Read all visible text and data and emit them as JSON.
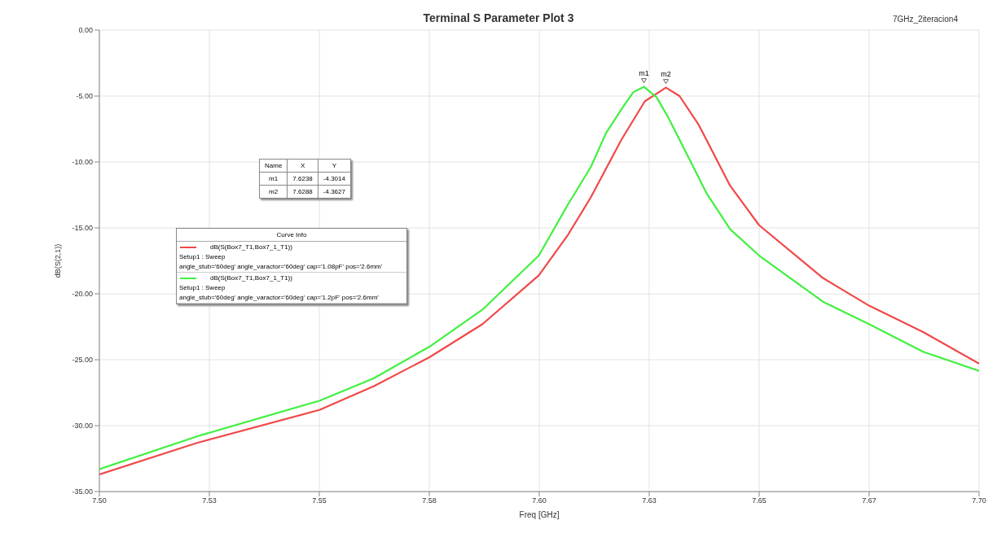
{
  "chart_data": {
    "type": "line",
    "title": "Terminal S Parameter Plot 3",
    "xlabel": "Freq [GHz]",
    "ylabel": "dB(S(2,1))",
    "legend_title": "Curve Info",
    "xlim": [
      7.5,
      7.7
    ],
    "xticks": [
      {
        "value": 7.5,
        "label": "7.50"
      },
      {
        "value": 7.525,
        "label": "7.53"
      },
      {
        "value": 7.55,
        "label": "7.55"
      },
      {
        "value": 7.575,
        "label": "7.58"
      },
      {
        "value": 7.6,
        "label": "7.60"
      },
      {
        "value": 7.625,
        "label": "7.63"
      },
      {
        "value": 7.65,
        "label": "7.65"
      },
      {
        "value": 7.675,
        "label": "7.67"
      },
      {
        "value": 7.7,
        "label": "7.70"
      }
    ],
    "ylim": [
      -35,
      0
    ],
    "yticks": [
      {
        "value": -35,
        "label": "-35.00"
      },
      {
        "value": -30,
        "label": "-30.00"
      },
      {
        "value": -25,
        "label": "-25.00"
      },
      {
        "value": -20,
        "label": "-20.00"
      },
      {
        "value": -15,
        "label": "-15.00"
      },
      {
        "value": -10,
        "label": "-10.00"
      },
      {
        "value": -5,
        "label": "-5.00"
      },
      {
        "value": 0,
        "label": "0.00"
      }
    ],
    "grid": true,
    "legend": "left",
    "marker": "none",
    "line_style": "solid",
    "series": [
      {
        "name": "dB(S(Box7_T1,Box7_1_T1))\nSetup1 : Sweep\nangle_stub='60deg' angle_varactor='60deg' cap='1.08pF' pos='2.6mm'",
        "color": "#f04848",
        "x": [
          7.5,
          7.5223,
          7.5501,
          7.5624,
          7.5751,
          7.5871,
          7.5999,
          7.6064,
          7.6117,
          7.6187,
          7.624,
          7.6288,
          7.6319,
          7.6363,
          7.6434,
          7.65,
          7.6645,
          7.675,
          7.6873,
          7.7
        ],
        "values": [
          -33.7,
          -31.3,
          -28.8,
          -27.0,
          -24.8,
          -22.3,
          -18.6,
          -15.6,
          -12.7,
          -8.3,
          -5.4,
          -4.36,
          -5.0,
          -7.2,
          -11.8,
          -14.8,
          -18.8,
          -20.9,
          -22.9,
          -25.3
        ]
      },
      {
        "name": "dB(S(Box7_T1,Box7_1_T1))\nSetup1 : Sweep\nangle_stub='60deg' angle_varactor='60deg' cap='1.2pF' pos='2.6mm'",
        "color": "#40f040",
        "x": [
          7.5,
          7.5223,
          7.5501,
          7.5624,
          7.5751,
          7.5871,
          7.5999,
          7.6064,
          7.6117,
          7.6152,
          7.6187,
          7.6214,
          7.6238,
          7.6267,
          7.6293,
          7.6328,
          7.6381,
          7.6434,
          7.65,
          7.6645,
          7.675,
          7.6873,
          7.7
        ],
        "values": [
          -33.3,
          -30.8,
          -28.1,
          -26.4,
          -24.0,
          -21.2,
          -17.1,
          -13.3,
          -10.4,
          -7.8,
          -6.0,
          -4.7,
          -4.3,
          -5.1,
          -6.6,
          -8.9,
          -12.4,
          -15.1,
          -17.1,
          -20.6,
          -22.3,
          -24.4,
          -25.85
        ]
      }
    ],
    "annotations": [
      "7GHz_2iteracion4",
      "Name",
      "X",
      "Y",
      "m1",
      "7.6238",
      "-4.3014",
      "m2",
      "7.6288",
      "-4.3627",
      {
        "text": "m1",
        "x": 7.6238,
        "y": -4.3014
      },
      {
        "text": "m2",
        "x": 7.6288,
        "y": -4.3627
      }
    ]
  }
}
